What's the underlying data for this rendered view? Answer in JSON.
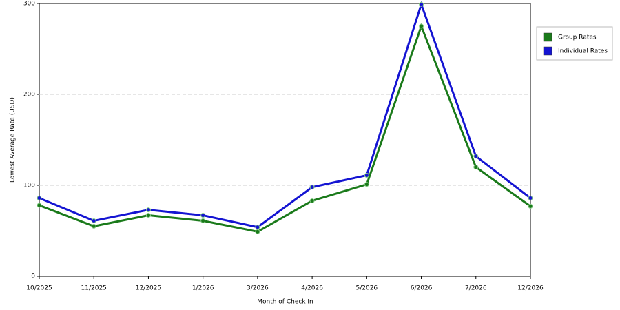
{
  "chart_data": {
    "type": "line",
    "x_label": "Month of Check In",
    "y_label": "Lowest Average Rate (USD)",
    "categories": [
      "10/2025",
      "11/2025",
      "12/2025",
      "1/2026",
      "3/2026",
      "4/2026",
      "5/2026",
      "6/2026",
      "7/2026",
      "12/2026"
    ],
    "series": [
      {
        "name": "Group Rates",
        "color": "#1a7a1a",
        "values": [
          78,
          55,
          67,
          61,
          49,
          83,
          101,
          275,
          120,
          77
        ]
      },
      {
        "name": "Individual Rates",
        "color": "#1414d2",
        "values": [
          86,
          61,
          73,
          67,
          54,
          98,
          111,
          299,
          132,
          86
        ]
      }
    ],
    "ylim": [
      0,
      300
    ],
    "yticks": [
      0,
      100,
      200,
      300
    ],
    "grid": true,
    "legend": "right"
  }
}
